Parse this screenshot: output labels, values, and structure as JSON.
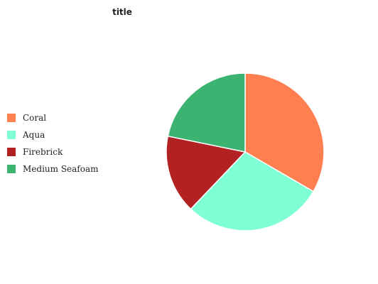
{
  "chart_data": {
    "type": "pie",
    "title": "title",
    "categories": [
      "Coral",
      "Aqua",
      "Firebrick",
      "Medium Seafoam"
    ],
    "values": [
      31.7,
      27.3,
      15.3,
      20.7
    ],
    "colors": [
      "#ff7f50",
      "#7fffd4",
      "#b22222",
      "#3cb371"
    ],
    "legend_position": "left"
  }
}
